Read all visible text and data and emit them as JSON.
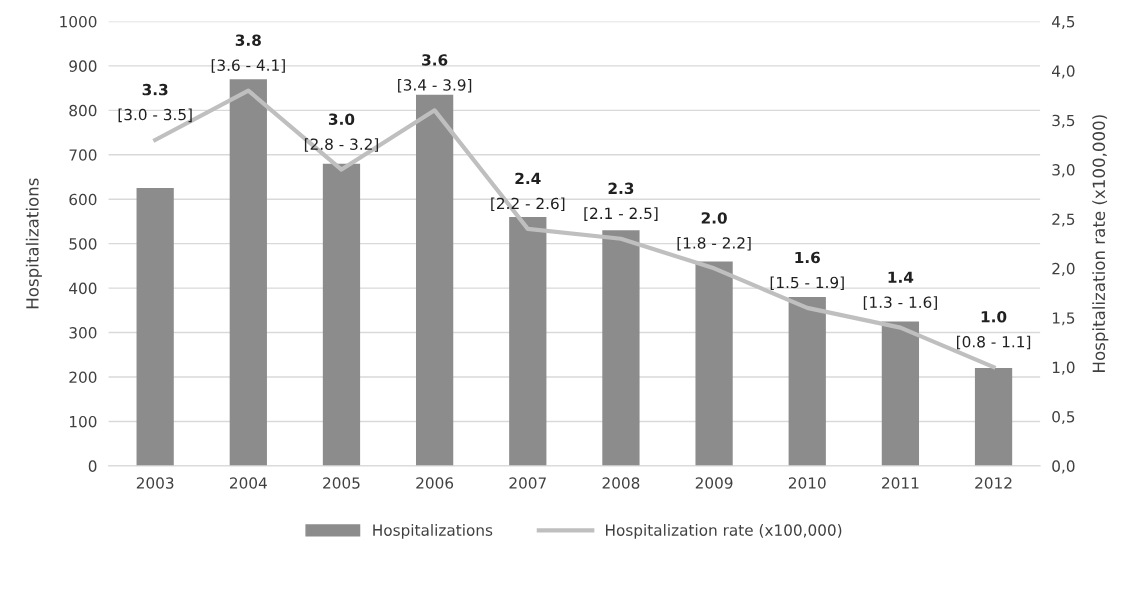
{
  "chart_data": {
    "type": "bar",
    "ylabel": "Hospitalizations",
    "y2label": "Hospitalization rate (x100,000)",
    "categories": [
      "2003",
      "2004",
      "2005",
      "2006",
      "2007",
      "2008",
      "2009",
      "2010",
      "2011",
      "2012"
    ],
    "series": [
      {
        "name": "Hospitalizations",
        "color": "#8c8c8c",
        "values": [
          625,
          870,
          680,
          835,
          560,
          530,
          460,
          380,
          325,
          220
        ]
      },
      {
        "name": "Hospitalization rate (x100,000)",
        "type": "line",
        "axis": "y2",
        "color": "#bfbfbf",
        "values": [
          3.3,
          3.8,
          3.0,
          3.6,
          2.4,
          2.3,
          2.0,
          1.6,
          1.4,
          1.0
        ],
        "value_labels": [
          "3.3",
          "3.8",
          "3.0",
          "3.6",
          "2.4",
          "2.3",
          "2.0",
          "1.6",
          "1.4",
          "1.0"
        ]
      }
    ],
    "ylim": [
      0,
      1000
    ],
    "yticks": [
      0,
      100,
      200,
      300,
      400,
      500,
      600,
      700,
      800,
      900,
      1000
    ],
    "y2lim": [
      0,
      4.5
    ],
    "y2ticks": [
      {
        "value": 0,
        "label": "0,0"
      },
      {
        "value": 0.5,
        "label": "0,5"
      },
      {
        "value": 1.0,
        "label": "1,0"
      },
      {
        "value": 1.5,
        "label": "1,5"
      },
      {
        "value": 2.0,
        "label": "2,0"
      },
      {
        "value": 2.5,
        "label": "2,5"
      },
      {
        "value": 3.0,
        "label": "3,0"
      },
      {
        "value": 3.5,
        "label": "3,5"
      },
      {
        "value": 4.0,
        "label": "4,0"
      },
      {
        "value": 4.5,
        "label": "4,5"
      }
    ],
    "annotations": [
      "[3.0 - 3.5]",
      "[3.6 - 4.1]",
      "[2.8 - 3.2]",
      "[3.4 - 3.9]",
      "[2.2 - 2.6]",
      "[2.1 - 2.5]",
      "[1.8 - 2.2]",
      "[1.5 - 1.9]",
      "[1.3 - 1.6]",
      "[0.8 - 1.1]"
    ],
    "grid": "y",
    "legend": "bottom"
  }
}
